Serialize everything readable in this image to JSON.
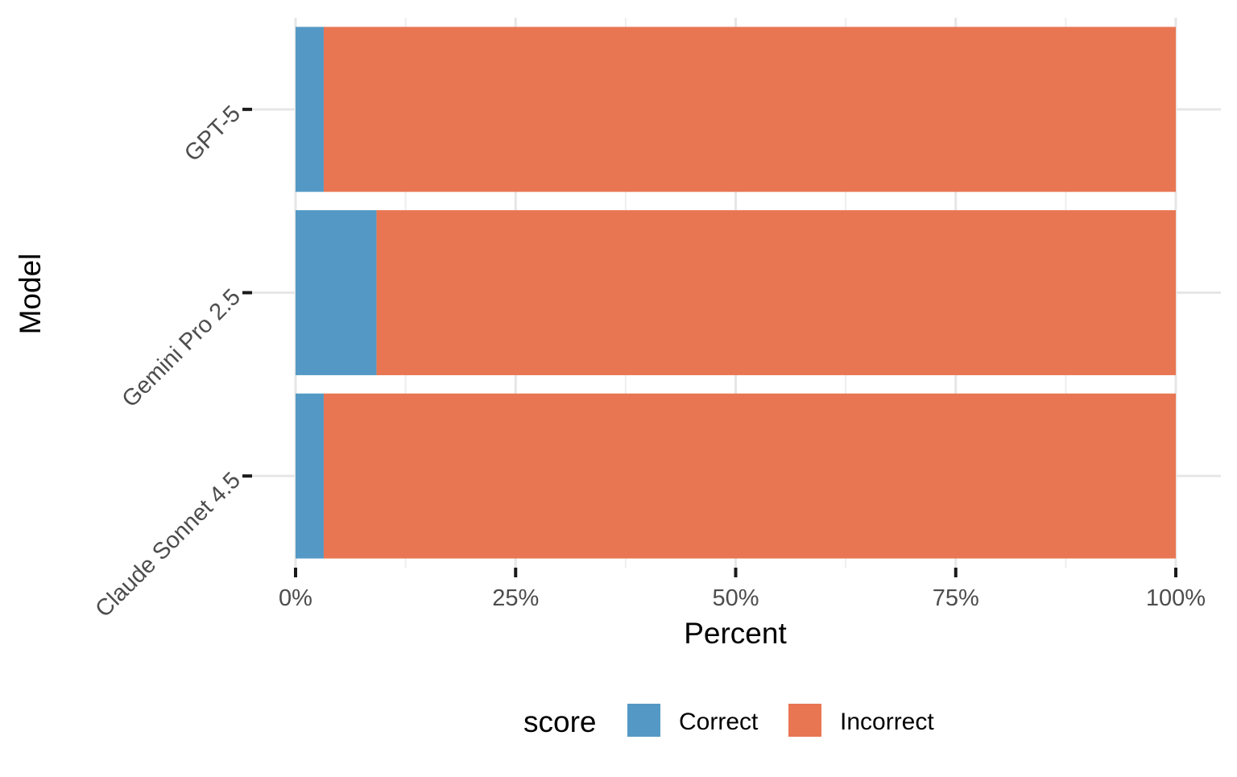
{
  "chart_data": {
    "type": "bar",
    "orientation": "horizontal",
    "stacked": true,
    "categories": [
      "GPT-5",
      "Gemini Pro 2.5",
      "Claude Sonnet 4.5"
    ],
    "series": [
      {
        "name": "Correct",
        "color": "#5499C5",
        "values": [
          3.2,
          9.2,
          3.2
        ]
      },
      {
        "name": "Incorrect",
        "color": "#E87653",
        "values": [
          96.8,
          90.8,
          96.8
        ]
      }
    ],
    "xlabel": "Percent",
    "ylabel": "Model",
    "xlim": [
      0,
      100
    ],
    "x_ticks": [
      0,
      25,
      50,
      75,
      100
    ],
    "x_tick_labels": [
      "0%",
      "25%",
      "50%",
      "75%",
      "100%"
    ],
    "grid": true,
    "legend": {
      "title": "score",
      "position": "bottom"
    }
  }
}
